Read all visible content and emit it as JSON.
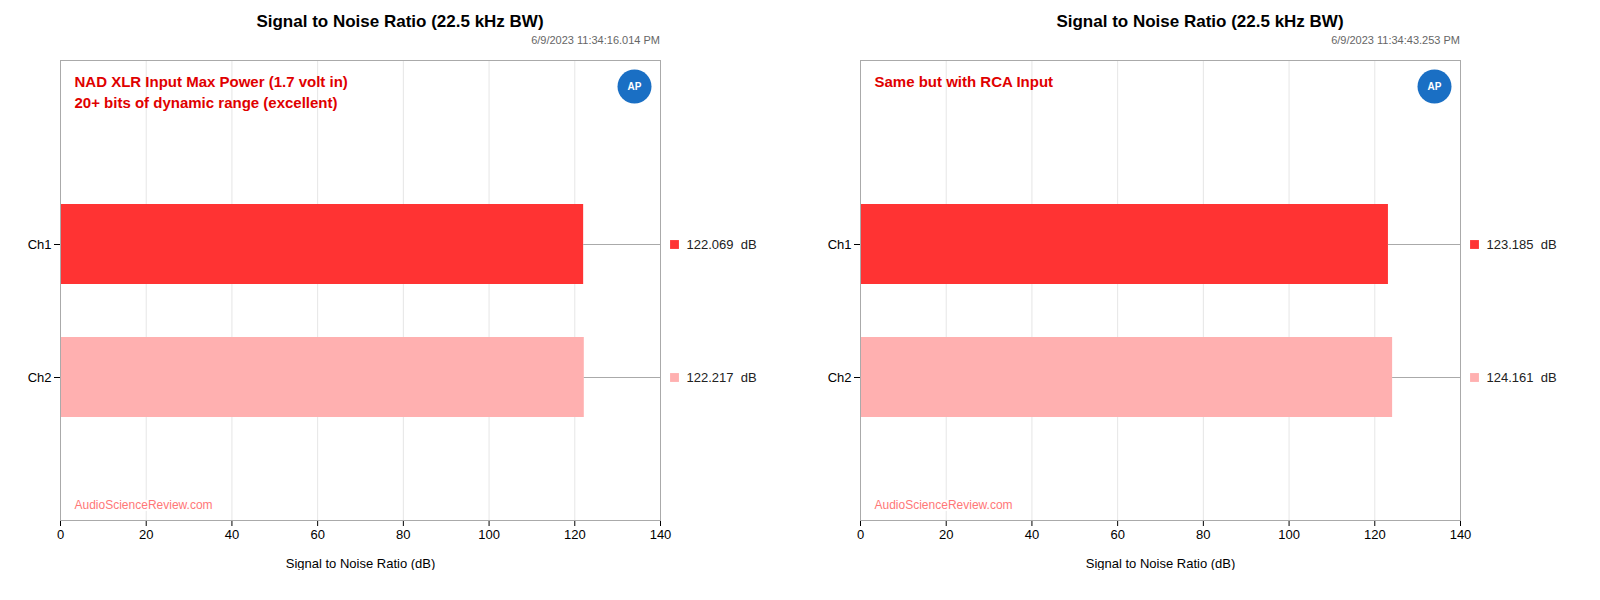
{
  "chart_data": [
    {
      "type": "bar",
      "orientation": "horizontal",
      "title": "Signal to Noise Ratio (22.5 kHz BW)",
      "subtitle": "6/9/2023 11:34:16.014 PM",
      "annotations": [
        "NAD XLR Input Max Power (1.7 volt in)",
        "20+ bits of dynamic range (excellent)"
      ],
      "watermark": "AudioScienceReview.com",
      "logo": "AP",
      "categories": [
        "Ch1",
        "Ch2"
      ],
      "values": [
        122.069,
        122.217
      ],
      "value_labels": [
        "122.069  dB",
        "122.217  dB"
      ],
      "data_labels": true,
      "colors": [
        "#FF3333",
        "#FFB0B0"
      ],
      "xlabel": "Signal to Noise Ratio (dB)",
      "xlim": [
        0,
        140
      ],
      "xticks": [
        0,
        20,
        40,
        60,
        80,
        100,
        120,
        140
      ],
      "grid": true
    },
    {
      "type": "bar",
      "orientation": "horizontal",
      "title": "Signal to Noise Ratio (22.5 kHz BW)",
      "subtitle": "6/9/2023 11:34:43.253 PM",
      "annotations": [
        "Same but with RCA Input"
      ],
      "watermark": "AudioScienceReview.com",
      "logo": "AP",
      "categories": [
        "Ch1",
        "Ch2"
      ],
      "values": [
        123.185,
        124.161
      ],
      "value_labels": [
        "123.185  dB",
        "124.161  dB"
      ],
      "data_labels": true,
      "colors": [
        "#FF3333",
        "#FFB0B0"
      ],
      "xlabel": "Signal to Noise Ratio (dB)",
      "xlim": [
        0,
        140
      ],
      "xticks": [
        0,
        20,
        40,
        60,
        80,
        100,
        120,
        140
      ],
      "grid": true
    }
  ]
}
